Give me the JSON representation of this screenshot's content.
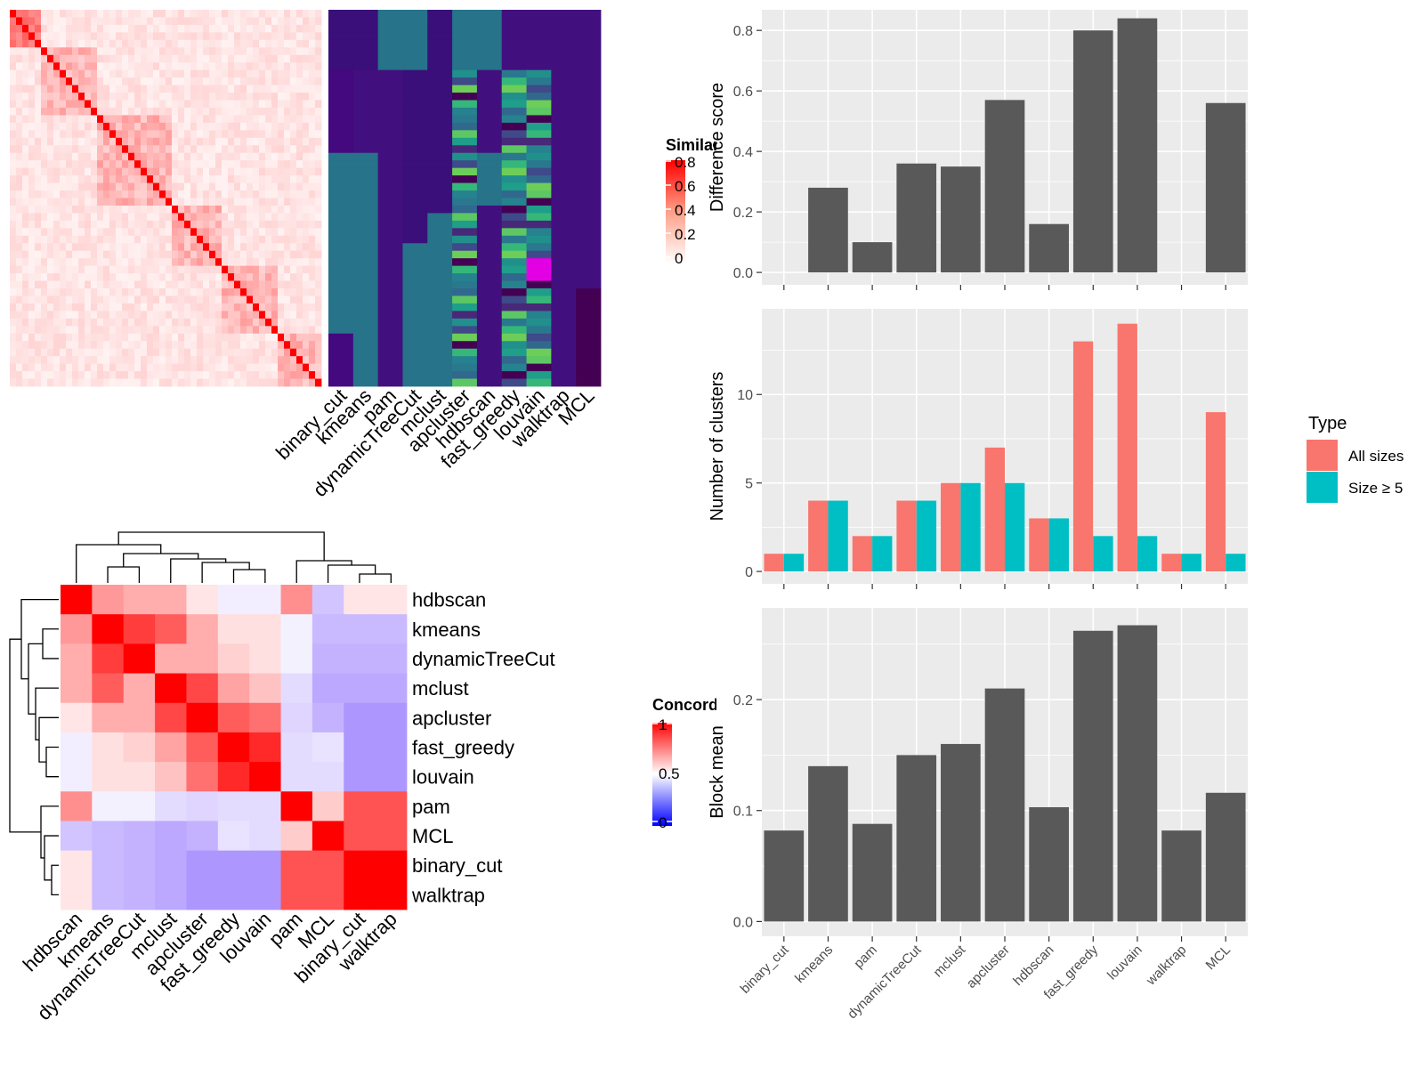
{
  "colors": {
    "panel_bg": "#EBEBEB",
    "grid": "#FFFFFF",
    "bar_gray": "#595959",
    "all_sizes": "#F8766D",
    "size5": "#00BFC4",
    "heat_red": "#FF0000",
    "heat_blue": "#0000FF",
    "membership_low": "#440154",
    "membership_mid": "#21908C",
    "membership_high": "#5DC863",
    "membership_outlier": "#E400E4"
  },
  "similarity_heatmap": {
    "legend_title": "Similarity",
    "legend_ticks": [
      "0.8",
      "0.6",
      "0.4",
      "0.2",
      "0"
    ],
    "n_cells": 50,
    "method_labels": [
      "binary_cut",
      "kmeans",
      "pam",
      "dynamicTreeCut",
      "mclust",
      "apcluster",
      "hdbscan",
      "fast_greedy",
      "louvain",
      "walktrap",
      "MCL"
    ]
  },
  "concordance_heatmap": {
    "legend_title": "Concordance",
    "legend_ticks": [
      "1",
      "0.5",
      "0"
    ],
    "order": [
      "hdbscan",
      "kmeans",
      "dynamicTreeCut",
      "mclust",
      "apcluster",
      "fast_greedy",
      "louvain",
      "pam",
      "MCL",
      "binary_cut",
      "walktrap"
    ],
    "matrix": [
      [
        1.0,
        0.7,
        0.66,
        0.66,
        0.55,
        0.45,
        0.45,
        0.72,
        0.33,
        0.55,
        0.55
      ],
      [
        0.7,
        1.0,
        0.88,
        0.82,
        0.66,
        0.56,
        0.56,
        0.46,
        0.3,
        0.3,
        0.3
      ],
      [
        0.66,
        0.88,
        1.0,
        0.66,
        0.66,
        0.59,
        0.56,
        0.46,
        0.28,
        0.28,
        0.28
      ],
      [
        0.66,
        0.82,
        0.66,
        1.0,
        0.86,
        0.68,
        0.62,
        0.4,
        0.25,
        0.25,
        0.25
      ],
      [
        0.55,
        0.66,
        0.66,
        0.86,
        1.0,
        0.82,
        0.78,
        0.38,
        0.28,
        0.2,
        0.2
      ],
      [
        0.45,
        0.56,
        0.59,
        0.68,
        0.82,
        1.0,
        0.92,
        0.4,
        0.42,
        0.2,
        0.2
      ],
      [
        0.45,
        0.56,
        0.56,
        0.62,
        0.78,
        0.92,
        1.0,
        0.4,
        0.4,
        0.2,
        0.2
      ],
      [
        0.72,
        0.46,
        0.46,
        0.4,
        0.38,
        0.4,
        0.4,
        1.0,
        0.6,
        0.84,
        0.84
      ],
      [
        0.33,
        0.3,
        0.28,
        0.25,
        0.28,
        0.42,
        0.4,
        0.6,
        1.0,
        0.84,
        0.84
      ],
      [
        0.55,
        0.3,
        0.28,
        0.25,
        0.2,
        0.2,
        0.2,
        0.84,
        0.84,
        1.0,
        1.0
      ],
      [
        0.55,
        0.3,
        0.28,
        0.25,
        0.2,
        0.2,
        0.2,
        0.84,
        0.84,
        1.0,
        1.0
      ]
    ]
  },
  "chart_data": [
    {
      "type": "bar",
      "categories": [
        "binary_cut",
        "kmeans",
        "pam",
        "dynamicTreeCut",
        "mclust",
        "apcluster",
        "hdbscan",
        "fast_greedy",
        "louvain",
        "walktrap",
        "MCL"
      ],
      "values": [
        0,
        0.28,
        0.1,
        0.36,
        0.35,
        0.57,
        0.16,
        0.8,
        0.84,
        0,
        0.56
      ],
      "ylabel": "Difference score",
      "ylim": [
        0,
        0.86
      ],
      "yticks": [
        0.0,
        0.2,
        0.4,
        0.6,
        0.8
      ],
      "ytick_labels": [
        "0.0",
        "0.2",
        "0.4",
        "0.6",
        "0.8"
      ],
      "grid": true
    },
    {
      "type": "bar",
      "categories": [
        "binary_cut",
        "kmeans",
        "pam",
        "dynamicTreeCut",
        "mclust",
        "apcluster",
        "hdbscan",
        "fast_greedy",
        "louvain",
        "walktrap",
        "MCL"
      ],
      "series": [
        {
          "name": "All sizes",
          "values": [
            1,
            4,
            2,
            4,
            5,
            7,
            3,
            13,
            14,
            1,
            9
          ]
        },
        {
          "name": "Size ≥ 5",
          "values": [
            1,
            4,
            2,
            4,
            5,
            5,
            3,
            2,
            2,
            1,
            1
          ]
        }
      ],
      "ylabel": "Number of clusters",
      "ylim": [
        0,
        14.7
      ],
      "yticks": [
        0,
        5,
        10
      ],
      "ytick_labels": [
        "0",
        "5",
        "10"
      ],
      "legend_title": "Type",
      "legend_position": "right",
      "grid": true
    },
    {
      "type": "bar",
      "categories": [
        "binary_cut",
        "kmeans",
        "pam",
        "dynamicTreeCut",
        "mclust",
        "apcluster",
        "hdbscan",
        "fast_greedy",
        "louvain",
        "walktrap",
        "MCL"
      ],
      "values": [
        0.082,
        0.14,
        0.088,
        0.15,
        0.16,
        0.21,
        0.103,
        0.262,
        0.267,
        0.082,
        0.116
      ],
      "ylabel": "Block mean",
      "ylim": [
        0,
        0.28
      ],
      "yticks": [
        0.0,
        0.1,
        0.2
      ],
      "ytick_labels": [
        "0.0",
        "0.1",
        "0.2"
      ],
      "grid": true
    }
  ]
}
